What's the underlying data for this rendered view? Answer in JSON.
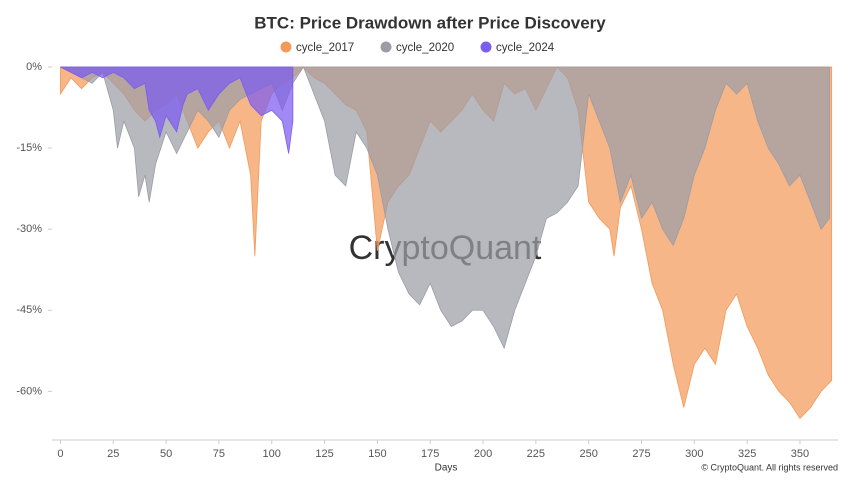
{
  "chart_data": {
    "type": "area",
    "title": "BTC: Price Drawdown after Price Discovery",
    "xlabel": "Days",
    "watermark": "CryptoQuant",
    "footer": "© CryptoQuant. All rights reserved",
    "xlim": [
      -4,
      368
    ],
    "xticks": [
      0,
      25,
      50,
      75,
      100,
      125,
      150,
      175,
      200,
      225,
      250,
      275,
      300,
      325,
      350
    ],
    "ylim": [
      -69,
      0
    ],
    "yticks": [
      {
        "value": 0,
        "label": "0%"
      },
      {
        "value": -15,
        "label": "-15%"
      },
      {
        "value": -30,
        "label": "-30%"
      },
      {
        "value": -45,
        "label": "-45%"
      },
      {
        "value": -60,
        "label": "-60%"
      }
    ],
    "legend": "top",
    "series": [
      {
        "name": "cycle_2017",
        "color": "#f39a5a",
        "x": [
          0,
          5,
          10,
          15,
          20,
          25,
          30,
          35,
          40,
          45,
          50,
          55,
          60,
          65,
          70,
          75,
          80,
          85,
          90,
          92,
          95,
          100,
          105,
          110,
          115,
          120,
          125,
          130,
          135,
          140,
          145,
          150,
          155,
          160,
          165,
          170,
          175,
          180,
          185,
          190,
          195,
          200,
          205,
          210,
          215,
          220,
          225,
          230,
          235,
          240,
          245,
          250,
          255,
          260,
          262,
          265,
          270,
          275,
          280,
          285,
          290,
          295,
          300,
          305,
          310,
          315,
          320,
          325,
          330,
          335,
          340,
          345,
          350,
          355,
          360,
          365
        ],
        "values": [
          -5,
          -2,
          -4,
          -2,
          -1,
          -3,
          -5,
          -8,
          -10,
          -8,
          -7,
          -5,
          -10,
          -15,
          -12,
          -10,
          -15,
          -10,
          -20,
          -35,
          -10,
          -5,
          -3,
          -2,
          0,
          -2,
          -3,
          -5,
          -7,
          -8,
          -12,
          -34,
          -25,
          -22,
          -20,
          -15,
          -10,
          -12,
          -10,
          -8,
          -5,
          -8,
          -10,
          -3,
          -5,
          -4,
          -8,
          -4,
          0,
          -2,
          -8,
          -25,
          -28,
          -30,
          -35,
          -26,
          -22,
          -30,
          -40,
          -45,
          -55,
          -63,
          -55,
          -52,
          -55,
          -45,
          -42,
          -48,
          -52,
          -57,
          -60,
          -62,
          -65,
          -63,
          -60,
          -58
        ]
      },
      {
        "name": "cycle_2020",
        "color": "#9d9ca6",
        "x": [
          0,
          5,
          10,
          15,
          20,
          25,
          27,
          30,
          35,
          37,
          40,
          42,
          45,
          50,
          55,
          60,
          65,
          70,
          75,
          80,
          85,
          90,
          95,
          100,
          105,
          110,
          115,
          120,
          125,
          130,
          135,
          140,
          145,
          150,
          155,
          160,
          165,
          170,
          175,
          180,
          185,
          190,
          195,
          200,
          205,
          210,
          215,
          220,
          225,
          230,
          235,
          240,
          245,
          250,
          255,
          260,
          265,
          270,
          275,
          280,
          285,
          290,
          295,
          300,
          305,
          310,
          315,
          320,
          325,
          330,
          335,
          340,
          345,
          350,
          355,
          360,
          364
        ],
        "values": [
          0,
          -1,
          -2,
          -3,
          -1,
          -8,
          -15,
          -10,
          -15,
          -24,
          -20,
          -25,
          -18,
          -12,
          -16,
          -12,
          -8,
          -10,
          -13,
          -8,
          -6,
          -5,
          -4,
          -3,
          -8,
          -3,
          0,
          -5,
          -10,
          -20,
          -22,
          -12,
          -15,
          -20,
          -30,
          -38,
          -42,
          -44,
          -40,
          -45,
          -48,
          -47,
          -45,
          -45,
          -48,
          -52,
          -45,
          -40,
          -35,
          -28,
          -27,
          -25,
          -22,
          -5,
          -10,
          -15,
          -25,
          -20,
          -28,
          -25,
          -30,
          -33,
          -28,
          -20,
          -15,
          -8,
          -3,
          -5,
          -3,
          -10,
          -15,
          -18,
          -22,
          -20,
          -25,
          -30,
          -28
        ]
      },
      {
        "name": "cycle_2024",
        "color": "#7b5cf0",
        "x": [
          0,
          5,
          10,
          15,
          20,
          25,
          30,
          35,
          40,
          42,
          45,
          47,
          50,
          55,
          58,
          60,
          65,
          70,
          75,
          80,
          85,
          90,
          95,
          100,
          105,
          108,
          110
        ],
        "values": [
          0,
          -1,
          -2,
          -1,
          -2,
          -1,
          -2,
          -4,
          -3,
          -8,
          -10,
          -13,
          -9,
          -12,
          -7,
          -5,
          -4,
          -8,
          -5,
          -3,
          -2,
          -7,
          -9,
          -8,
          -10,
          -16,
          -10
        ]
      }
    ]
  }
}
